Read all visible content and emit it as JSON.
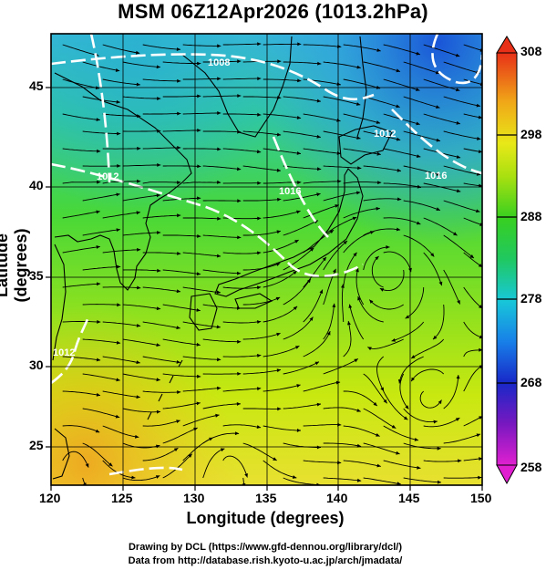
{
  "title": "MSM 06Z12Apr2026 (1013.2hPa)",
  "x_axis": {
    "label": "Longitude (degrees)",
    "range": [
      120,
      150
    ],
    "ticks": [
      "120",
      "125",
      "130",
      "135",
      "140",
      "145",
      "150"
    ]
  },
  "y_axis": {
    "label": "Latitude  (degrees)",
    "range": [
      22.5,
      47.5
    ],
    "ticks": [
      "25",
      "30",
      "35",
      "40",
      "45"
    ]
  },
  "colorbar": {
    "range": [
      258,
      308
    ],
    "ticks": [
      "258",
      "268",
      "278",
      "288",
      "298",
      "308"
    ]
  },
  "contour_labels": [
    "1008",
    "1012",
    "1016",
    "1016",
    "1012",
    "1012"
  ],
  "credits": [
    "Drawing by DCL (https://www.gfd-dennou.org/library/dcl/)",
    "Data from http://database.rish.kyoto-u.ac.jp/arch/jmadata/"
  ]
}
